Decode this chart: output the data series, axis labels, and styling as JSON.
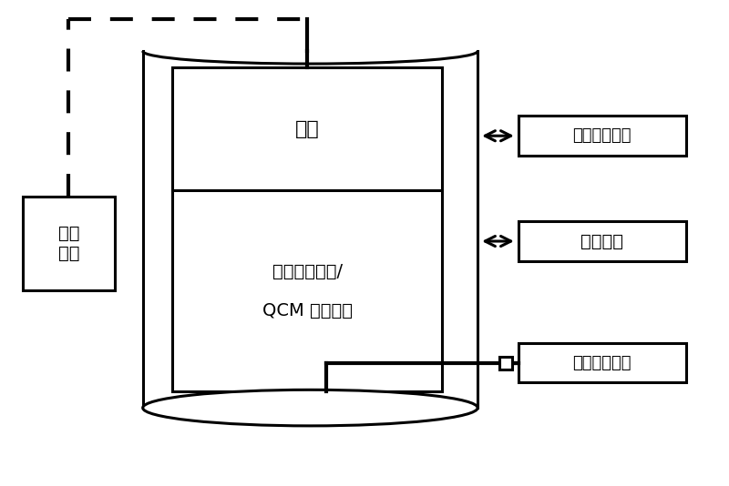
{
  "background_color": "#ffffff",
  "fig_width": 8.0,
  "fig_height": 5.34,
  "dpi": 100,
  "labels": {
    "liquid_tank": "液态\n储槽",
    "cold_screen": "冷屏",
    "crystal_test_line1": "晶片试验装置/",
    "crystal_test_line2": "QCM 探头试验",
    "vacuum": "真空抽气系统",
    "pressure": "复压系统",
    "measure": "测量控制系统"
  },
  "colors": {
    "black": "#000000",
    "white": "#ffffff"
  },
  "font_size": 14
}
